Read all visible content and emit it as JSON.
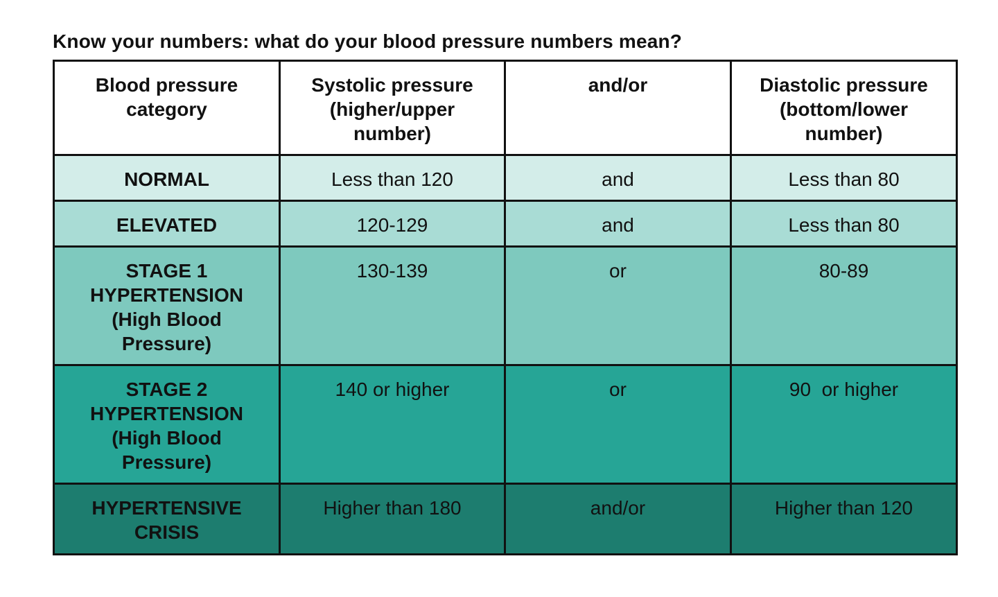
{
  "title": "Know your numbers: what do your blood pressure numbers mean?",
  "headers": [
    "Blood pressure\ncategory",
    "Systolic pressure\n(higher/upper\nnumber)",
    "and/or",
    "Diastolic pressure\n(bottom/lower\nnumber)"
  ],
  "rows": [
    {
      "category": "NORMAL",
      "systolic": "Less than 120",
      "conj": "and",
      "diastolic": "Less than 80",
      "color": "#d3ede9"
    },
    {
      "category": "ELEVATED",
      "systolic": "120-129",
      "conj": "and",
      "diastolic": "Less than 80",
      "color": "#a9dcd5"
    },
    {
      "category": "STAGE 1\nHYPERTENSION\n(High Blood\nPressure)",
      "systolic": "130-139",
      "conj": "or",
      "diastolic": "80-89",
      "color": "#7ec9be"
    },
    {
      "category": "STAGE 2\nHYPERTENSION\n(High Blood\nPressure)",
      "systolic": "140 or higher",
      "conj": "or",
      "diastolic": "90  or higher",
      "color": "#26a596"
    },
    {
      "category": "HYPERTENSIVE\nCRISIS",
      "systolic": "Higher than 180",
      "conj": "and/or",
      "diastolic": "Higher than 120",
      "color": "#1d7d6f"
    }
  ]
}
